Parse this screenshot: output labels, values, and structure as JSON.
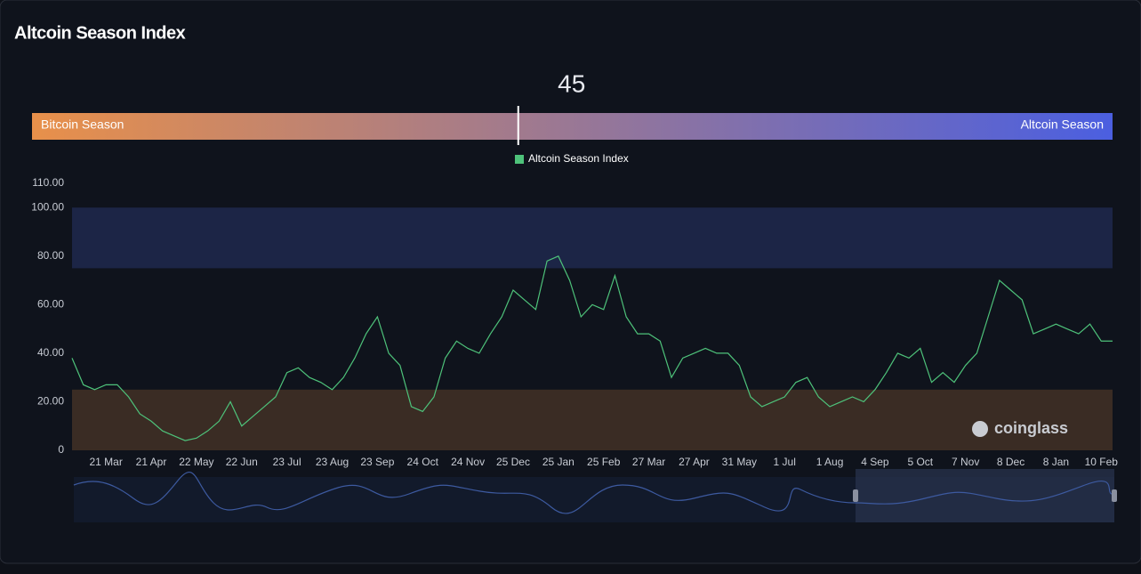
{
  "chart_data": {
    "type": "line",
    "title": "Altcoin Season Index",
    "gauge": {
      "value": 45,
      "range": [
        0,
        100
      ],
      "min_label": "Bitcoin Season",
      "max_label": "Altcoin Season",
      "colors": [
        "#e8904a",
        "#4b5fe0"
      ]
    },
    "watermark": "coinglass",
    "categories": [
      null,
      null,
      null,
      "21 Mar",
      null,
      null,
      null,
      "21 Apr",
      null,
      null,
      null,
      "22 May",
      null,
      null,
      null,
      "22 Jun",
      null,
      null,
      null,
      "23 Jul",
      null,
      null,
      null,
      "23 Aug",
      null,
      null,
      null,
      "23 Sep",
      null,
      null,
      null,
      "24 Oct",
      null,
      null,
      null,
      "24 Nov",
      null,
      null,
      null,
      "25 Dec",
      null,
      null,
      null,
      "25 Jan",
      null,
      null,
      null,
      "25 Feb",
      null,
      null,
      null,
      "27 Mar",
      null,
      null,
      null,
      "27 Apr",
      null,
      null,
      null,
      "31 May",
      null,
      null,
      null,
      "1 Jul",
      null,
      null,
      null,
      "1 Aug",
      null,
      null,
      null,
      "4 Sep",
      null,
      null,
      null,
      "5 Oct",
      null,
      null,
      null,
      "7 Nov",
      null,
      null,
      null,
      "8 Dec",
      null,
      null,
      null,
      "8 Jan",
      null,
      null,
      null,
      "10 Feb",
      null
    ],
    "series": [
      {
        "name": "Altcoin Season Index",
        "color": "#4ec27a",
        "values": [
          38,
          27,
          25,
          27,
          27,
          22,
          15,
          12,
          8,
          6,
          4,
          5,
          8,
          12,
          20,
          10,
          14,
          18,
          22,
          32,
          34,
          30,
          28,
          25,
          30,
          38,
          48,
          55,
          40,
          35,
          18,
          16,
          22,
          38,
          45,
          42,
          40,
          48,
          55,
          66,
          62,
          58,
          78,
          80,
          70,
          55,
          60,
          58,
          72,
          55,
          48,
          48,
          45,
          30,
          38,
          40,
          42,
          40,
          40,
          35,
          22,
          18,
          20,
          22,
          28,
          30,
          22,
          18,
          20,
          22,
          20,
          25,
          32,
          40,
          38,
          42,
          28,
          32,
          28,
          35,
          40,
          55,
          70,
          66,
          62,
          48,
          50,
          52,
          50,
          48,
          52,
          45,
          45
        ]
      }
    ],
    "ylim": [
      0,
      110
    ],
    "yticks": [
      0,
      {
        "value": 20,
        "label": "20.00"
      },
      {
        "value": 40,
        "label": "40.00"
      },
      {
        "value": 60,
        "label": "60.00"
      },
      {
        "value": 80,
        "label": "80.00"
      },
      {
        "value": 100,
        "label": "100.00"
      },
      {
        "value": 110,
        "label": "110.00"
      }
    ],
    "grid": false,
    "mark_areas": [
      {
        "from": 0,
        "to": 25,
        "color": "#3a2c24"
      },
      {
        "from": 75,
        "to": 100,
        "color": "#1c2546"
      }
    ]
  }
}
